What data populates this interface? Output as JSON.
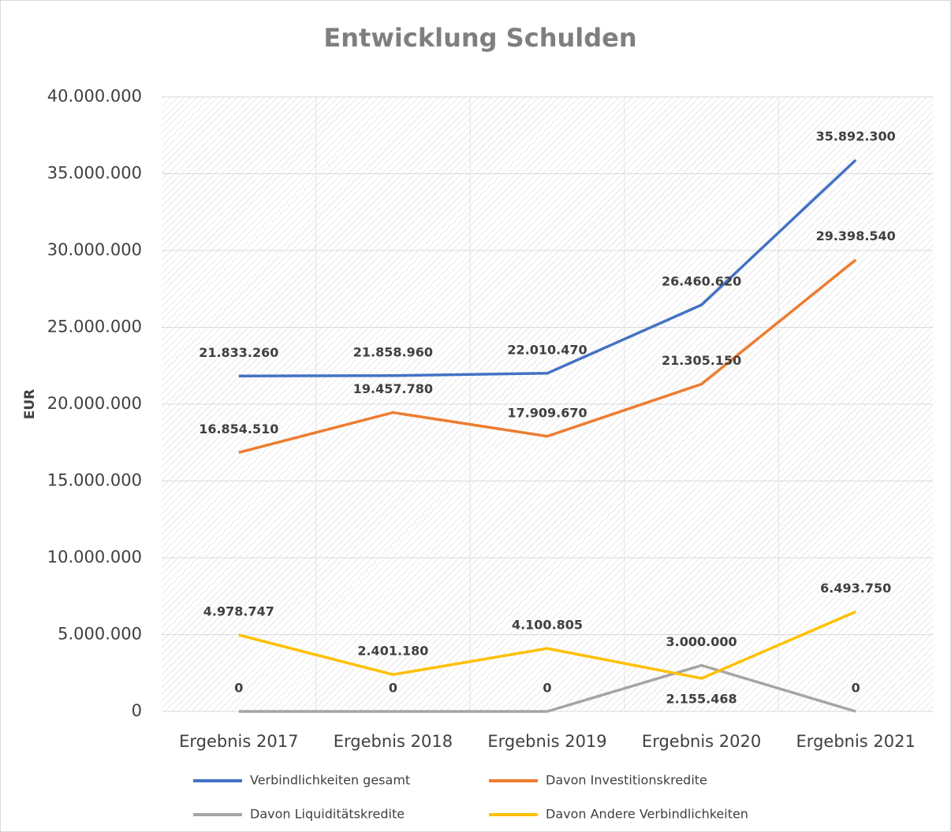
{
  "chart_data": {
    "type": "line",
    "title": "Entwicklung Schulden",
    "y_label": "EUR",
    "categories": [
      "Ergebnis 2017",
      "Ergebnis 2018",
      "Ergebnis 2019",
      "Ergebnis 2020",
      "Ergebnis 2021"
    ],
    "series": [
      {
        "name": "Verbindlichkeiten gesamt",
        "color": "#4472c4",
        "values": [
          21833260,
          21858960,
          22010470,
          26460620,
          35892300
        ],
        "value_labels": [
          "21.833.260",
          "21.858.960",
          "22.010.470",
          "26.460.620",
          "35.892.300"
        ]
      },
      {
        "name": "Davon Investitionskredite",
        "color": "#ed7d31",
        "values": [
          16854510,
          19457780,
          17909670,
          21305150,
          29398540
        ],
        "value_labels": [
          "16.854.510",
          "19.457.780",
          "17.909.670",
          "21.305.150",
          "29.398.540"
        ]
      },
      {
        "name": "Davon Liquiditätskredite",
        "color": "#a5a5a5",
        "values": [
          0,
          0,
          0,
          3000000,
          0
        ],
        "value_labels": [
          "0",
          "0",
          "0",
          "3.000.000",
          "0"
        ]
      },
      {
        "name": "Davon Andere Verbindlichkeiten",
        "color": "#ffc000",
        "values": [
          4978747,
          2401180,
          4100805,
          2155468,
          6493750
        ],
        "value_labels": [
          "4.978.747",
          "2.401.180",
          "4.100.805",
          "2.155.468",
          "6.493.750"
        ]
      }
    ],
    "ylim": [
      0,
      40000000
    ],
    "yticks": [
      0,
      {
        "value": 5000000,
        "label": "5.000.000"
      },
      {
        "value": 10000000,
        "label": "10.000.000"
      },
      {
        "value": 15000000,
        "label": "15.000.000"
      },
      {
        "value": 20000000,
        "label": "20.000.000"
      },
      {
        "value": 25000000,
        "label": "25.000.000"
      },
      {
        "value": 30000000,
        "label": "30.000.000"
      },
      {
        "value": 35000000,
        "label": "35.000.000"
      },
      {
        "value": 40000000,
        "label": "40.000.000"
      }
    ],
    "grid": true,
    "legend": "bottom"
  }
}
